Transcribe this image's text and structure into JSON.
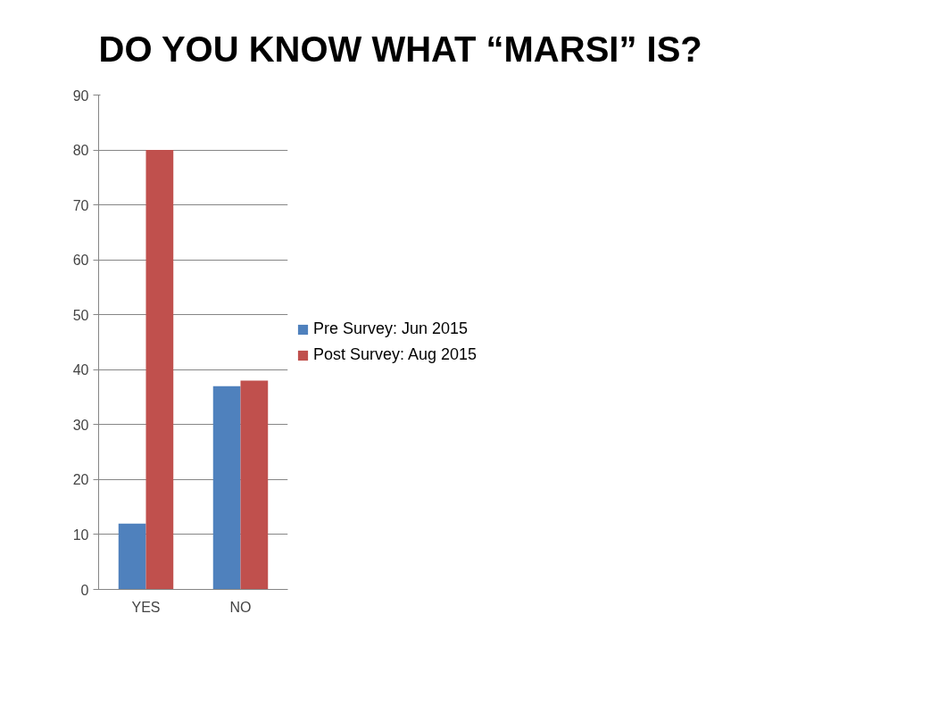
{
  "chart_data": {
    "type": "bar",
    "title": "DO YOU KNOW WHAT “MARSI” IS?",
    "categories": [
      "YES",
      "NO"
    ],
    "series": [
      {
        "name": "Pre Survey: Jun 2015",
        "color": "#4f81bd",
        "values": [
          12,
          37
        ]
      },
      {
        "name": "Post Survey: Aug 2015",
        "color": "#c0504d",
        "values": [
          80,
          38
        ]
      }
    ],
    "ylim": [
      0,
      90
    ],
    "yticks": [
      0,
      10,
      20,
      30,
      40,
      50,
      60,
      70,
      80,
      90
    ],
    "grid": "y",
    "legend": "right"
  }
}
